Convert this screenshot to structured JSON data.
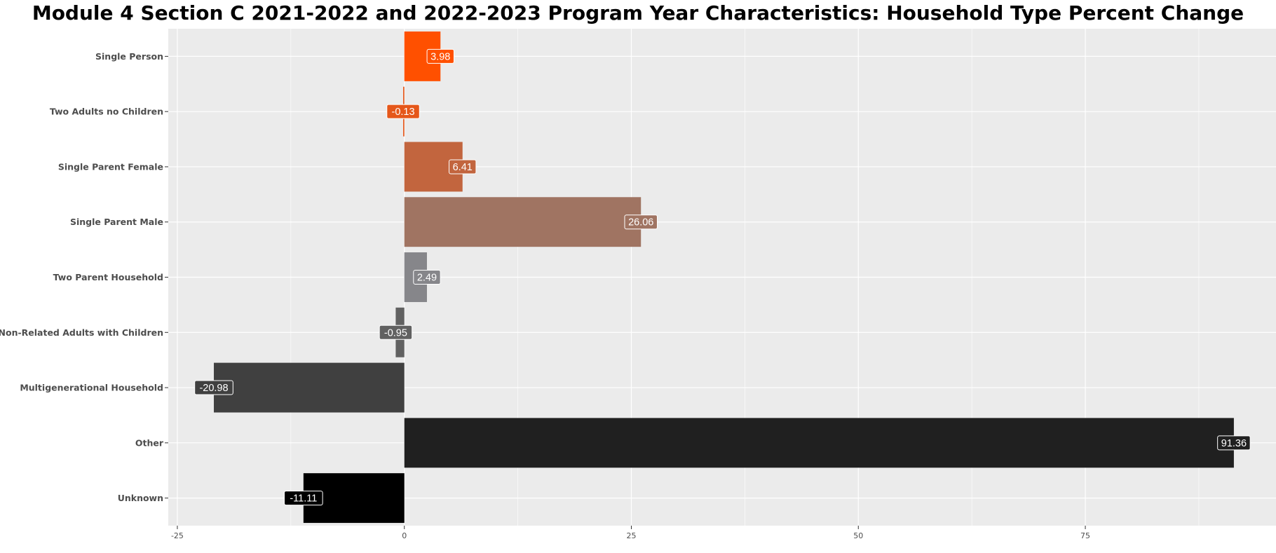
{
  "chart_data": {
    "type": "bar",
    "orientation": "horizontal",
    "title": "Module 4 Section C 2021-2022 and 2022-2023 Program Year Characteristics: Household Type Percent Change",
    "xlabel": "",
    "ylabel": "",
    "categories": [
      "Single Person",
      "Two Adults no Children",
      "Single Parent Female",
      "Single Parent Male",
      "Two Parent Household",
      "Non-Related Adults with Children",
      "Multigenerational Household",
      "Other",
      "Unknown"
    ],
    "values": [
      3.98,
      -0.13,
      6.41,
      26.06,
      2.49,
      -0.95,
      -20.98,
      91.36,
      -11.11
    ],
    "data_labels": [
      "3.98",
      "-0.13",
      "6.41",
      "26.06",
      "2.49",
      "-0.95",
      "-20.98",
      "91.36",
      "-11.11"
    ],
    "colors": [
      "#ff5000",
      "#e5571a",
      "#c2653e",
      "#a07462",
      "#86868a",
      "#616161",
      "#404040",
      "#202020",
      "#000000"
    ],
    "xlim": [
      -26,
      96
    ],
    "xticks": [
      -25,
      0,
      25,
      50,
      75
    ],
    "xtick_labels": [
      "-25",
      "0",
      "25",
      "50",
      "75"
    ],
    "grid": true,
    "background": "#ebebeb",
    "legend": "none"
  }
}
